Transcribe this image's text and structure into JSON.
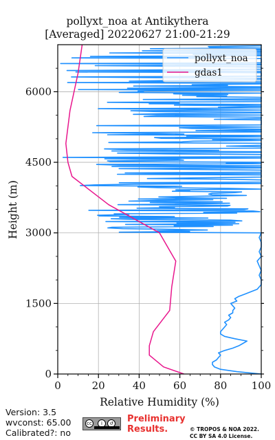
{
  "header": {
    "title_line1": "pollyxt_noa at Antikythera",
    "title_line2": "[Averaged] 20220627 21:00-21:29"
  },
  "footer": {
    "version": "Version: 3.5",
    "wvconst": "wvconst:  65.00",
    "calibrated": "Calibrated?: no",
    "preliminary_line1": "Preliminary",
    "preliminary_line2": "Results.",
    "copyright_line1": "© TROPOS & NOA 2022.",
    "copyright_line2": "CC BY SA 4.0 License.",
    "license_icon": "cc-by-sa-icon"
  },
  "colors": {
    "pollyxt": "#1e90ff",
    "gdas": "#e8158c",
    "grid": "#b0b0b0"
  },
  "chart_data": {
    "type": "line",
    "xlabel": "Relative Humidity (%)",
    "ylabel": "Height (m)",
    "xlim": [
      0,
      100
    ],
    "ylim": [
      0,
      7000
    ],
    "xticks": [
      0,
      20,
      40,
      60,
      80,
      100
    ],
    "yticks": [
      0,
      1500,
      3000,
      4500,
      6000
    ],
    "grid": true,
    "legend_position": "top-right",
    "series": [
      {
        "name": "pollyxt_noa",
        "color": "#1e90ff",
        "profile": [
          [
            0,
            100
          ],
          [
            50,
            88
          ],
          [
            100,
            80
          ],
          [
            150,
            77
          ],
          [
            200,
            76
          ],
          [
            250,
            76
          ],
          [
            300,
            78
          ],
          [
            350,
            79
          ],
          [
            400,
            80
          ],
          [
            450,
            79
          ],
          [
            500,
            82
          ],
          [
            550,
            86
          ],
          [
            600,
            89
          ],
          [
            650,
            91
          ],
          [
            700,
            93
          ],
          [
            750,
            87
          ],
          [
            800,
            82
          ],
          [
            850,
            80
          ],
          [
            900,
            80
          ],
          [
            950,
            81
          ],
          [
            1000,
            82
          ],
          [
            1050,
            83
          ],
          [
            1100,
            82
          ],
          [
            1150,
            84
          ],
          [
            1200,
            85
          ],
          [
            1250,
            84
          ],
          [
            1300,
            86
          ],
          [
            1350,
            86
          ],
          [
            1400,
            87
          ],
          [
            1450,
            86
          ],
          [
            1500,
            85
          ],
          [
            1550,
            88
          ],
          [
            1600,
            87
          ],
          [
            1650,
            89
          ],
          [
            1700,
            92
          ],
          [
            1750,
            95
          ],
          [
            1800,
            98
          ],
          [
            1850,
            99
          ],
          [
            1900,
            100
          ],
          [
            2000,
            100
          ],
          [
            2100,
            99
          ],
          [
            2200,
            100
          ],
          [
            2300,
            99
          ],
          [
            2400,
            98
          ],
          [
            2500,
            100
          ],
          [
            2600,
            99
          ],
          [
            2700,
            100
          ],
          [
            2800,
            100
          ],
          [
            2900,
            99
          ],
          [
            3000,
            100
          ]
        ],
        "noisy_region": {
          "from_height": 3000,
          "to_height": 7000,
          "description_range_rh": [
            0,
            100
          ]
        }
      },
      {
        "name": "gdas1",
        "color": "#e8158c",
        "profile": [
          [
            0,
            62
          ],
          [
            150,
            52
          ],
          [
            400,
            45
          ],
          [
            600,
            45
          ],
          [
            900,
            47
          ],
          [
            1350,
            55
          ],
          [
            1850,
            56
          ],
          [
            2400,
            58
          ],
          [
            3000,
            50
          ],
          [
            3600,
            25
          ],
          [
            4200,
            7
          ],
          [
            4500,
            5
          ],
          [
            4900,
            4
          ],
          [
            5600,
            6
          ],
          [
            6400,
            10
          ],
          [
            7000,
            12
          ]
        ]
      }
    ]
  }
}
